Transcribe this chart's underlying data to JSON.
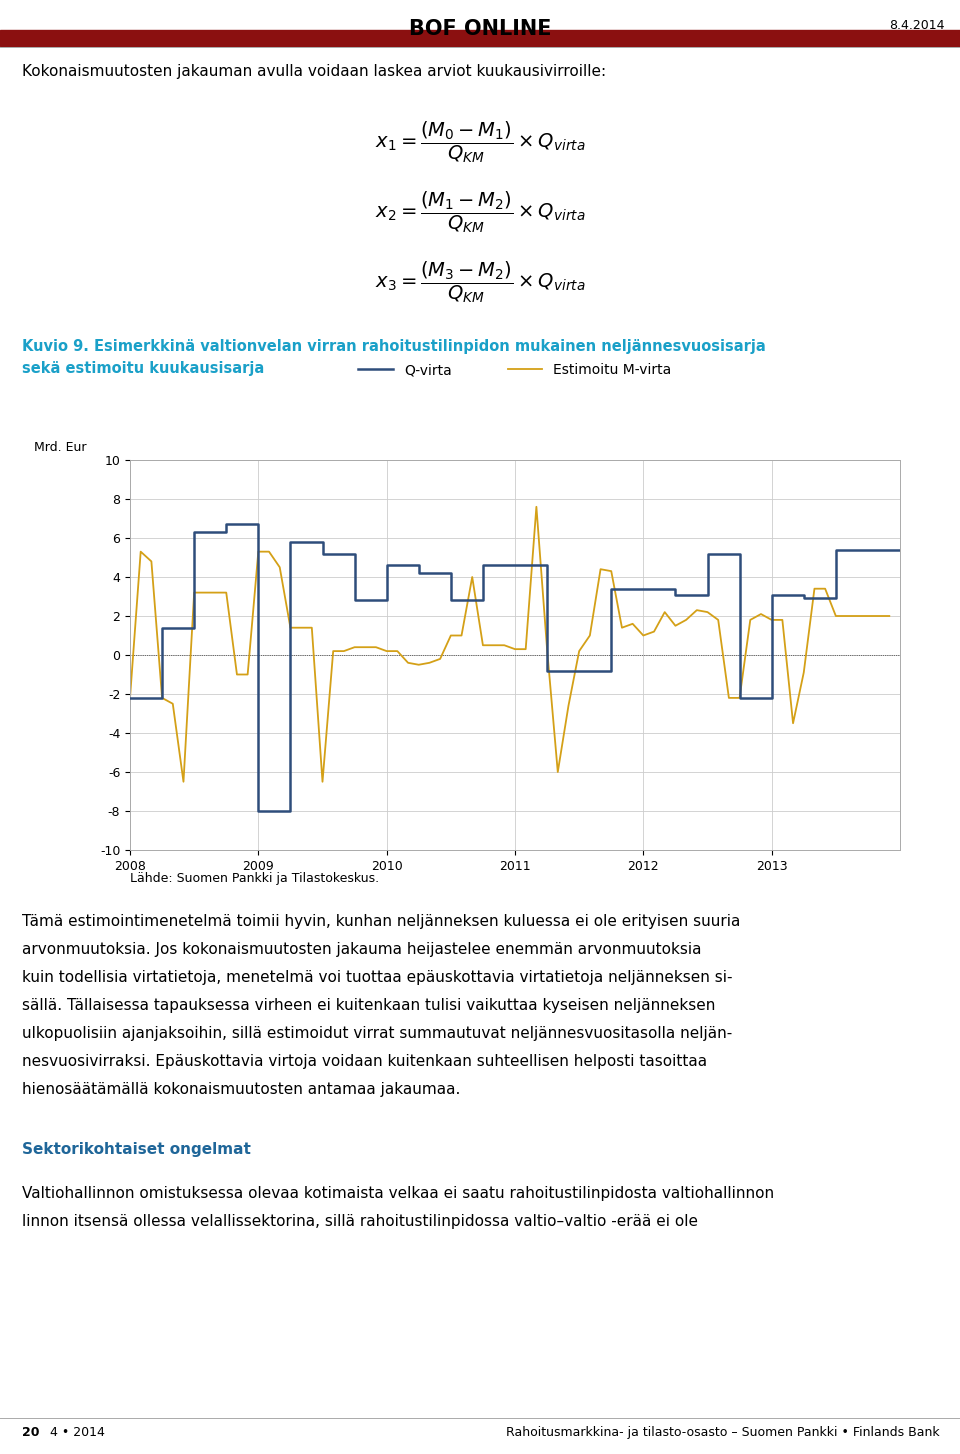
{
  "page_bg": "#ffffff",
  "header_text": "BOF ONLINE",
  "header_date": "8.4.2014",
  "header_bar_color": "#8B1010",
  "intro_text": "Kokonaismuutosten jakauman avulla voidaan laskea arviot kuukausivirroille:",
  "fig_caption_1": "Kuvio 9. Esimerkkinä valtionvelan virran rahoitustilinpidon mukainen neljännesvuosisarja",
  "fig_caption_2": "sekä estimoitu kuukausisarja",
  "fig_caption_color": "#1AA0C8",
  "legend_qvirta": "Q-virta",
  "legend_mvirta": "Estimoitu M-virta",
  "qvirta_color": "#2E4D7B",
  "mvirta_color": "#D4A017",
  "ylabel": "Mrd. Eur",
  "source_text": "Lähde: Suomen Pankki ja Tilastokeskus.",
  "qvirta_quarters": [
    -2.2,
    1.4,
    6.3,
    6.7,
    -8.0,
    5.8,
    5.2,
    2.8,
    4.6,
    4.2,
    2.8,
    4.6,
    4.6,
    -0.8,
    -0.8,
    3.4,
    3.4,
    3.1,
    5.2,
    -2.2,
    3.1,
    2.9,
    5.4,
    5.4
  ],
  "mvirta_monthly": [
    -2.2,
    5.3,
    4.8,
    -2.2,
    -2.5,
    -6.5,
    3.2,
    3.2,
    3.2,
    3.2,
    -1.0,
    -1.0,
    5.3,
    5.3,
    4.5,
    1.4,
    1.4,
    1.4,
    -6.5,
    0.2,
    0.2,
    0.4,
    0.4,
    0.4,
    0.2,
    0.2,
    -0.4,
    -0.5,
    -0.4,
    -0.2,
    1.0,
    1.0,
    4.0,
    0.5,
    0.5,
    0.5,
    0.3,
    0.3,
    7.6,
    0.3,
    -6.0,
    -2.6,
    0.2,
    1.0,
    4.4,
    4.3,
    1.4,
    1.6,
    1.0,
    1.2,
    2.2,
    1.5,
    1.8,
    2.3,
    2.2,
    1.8,
    -2.2,
    -2.2,
    1.8,
    2.1,
    1.8,
    1.8,
    -3.5,
    -0.9,
    3.4,
    3.4,
    2.0,
    2.0,
    2.0,
    2.0,
    2.0,
    2.0
  ],
  "year_ticks": [
    0,
    12,
    24,
    36,
    48,
    60
  ],
  "year_labels": [
    "2008",
    "2009",
    "2010",
    "2011",
    "2012",
    "2013"
  ],
  "yticks": [
    -10,
    -8,
    -6,
    -4,
    -2,
    0,
    2,
    4,
    6,
    8,
    10
  ],
  "body_paragraphs": [
    "Tämä estimointimenetelmä toimii hyvin, kunhan neljänneksen kuluessa ei ole erityisen suuria",
    "arvonmuutoksia. Jos kokonaismuutosten jakauma heijastelee enemmän arvonmuutoksia",
    "kuin todellisia virtatietoja, menetelmä voi tuottaa epäuskottavia virtatietoja neljänneksen si-",
    "sällä. Tällaisessa tapauksessa virheen ei kuitenkaan tulisi vaikuttaa kyseisen neljänneksen",
    "ulkopuolisiin ajanjaksoihin, sillä estimoidut virrat summautuvat neljännesvuositasolla neljän-",
    "nesvuosivirraksi. Epäuskottavia virtoja voidaan kuitenkaan suhteellisen helposti tasoittaa",
    "hienosäätämällä kokonaismuutosten antamaa jakaumaa."
  ],
  "section_title": "Sektorikohtaiset ongelmat",
  "section_title_color": "#1F6699",
  "bottom_body": [
    "Valtiohallinnon omistuksessa olevaa kotimaista velkaa ei saatu rahoitustilinpidosta valtiohallinnon",
    "linnon itsensä ollessa velallissektorina, sillä rahoitustilinpidossa valtio–valtio -erää ei ole"
  ],
  "footer_left_bold": "20",
  "footer_left_normal": "    4 • 2014",
  "footer_right": "Rahoitusmarkkina- ja tilasto-osasto – Suomen Pankki • Finlands Bank"
}
